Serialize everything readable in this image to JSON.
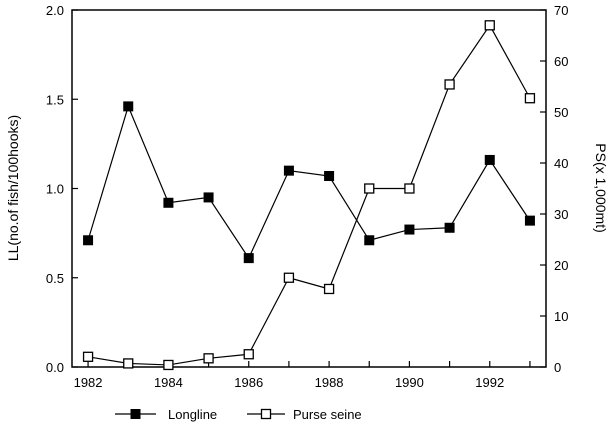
{
  "chart_data": {
    "type": "line",
    "title": "",
    "x": [
      1982,
      1983,
      1984,
      1985,
      1986,
      1987,
      1988,
      1989,
      1990,
      1991,
      1992,
      1993
    ],
    "x_tick_labels": [
      "1982",
      "1984",
      "1986",
      "1988",
      "1990",
      "1992"
    ],
    "xlim": [
      1981.6,
      1993.4
    ],
    "y_left": {
      "label": "LL(no.of fish/100hooks)",
      "lim": [
        0,
        2.0
      ],
      "tick_labels": [
        "0.0",
        "0.5",
        "1.0",
        "1.5",
        "2.0"
      ]
    },
    "y_right": {
      "label": "PS(x 1,000mt)",
      "lim": [
        0,
        70
      ],
      "tick_labels": [
        "0",
        "10",
        "20",
        "30",
        "40",
        "50",
        "60",
        "70"
      ]
    },
    "series": [
      {
        "name": "Longline",
        "axis": "left",
        "marker": "filled-square",
        "values": [
          0.71,
          1.46,
          0.92,
          0.95,
          0.61,
          1.1,
          1.07,
          0.71,
          0.77,
          0.78,
          1.16,
          0.82
        ]
      },
      {
        "name": "Purse seine",
        "axis": "right",
        "marker": "open-square",
        "values": [
          2.0,
          0.7,
          0.4,
          1.7,
          2.5,
          17.5,
          15.3,
          35.0,
          35.0,
          55.4,
          67.0,
          52.7
        ]
      }
    ],
    "grid": false,
    "legend_position": "bottom"
  },
  "colors": {
    "line": "#000000",
    "background": "#ffffff"
  }
}
